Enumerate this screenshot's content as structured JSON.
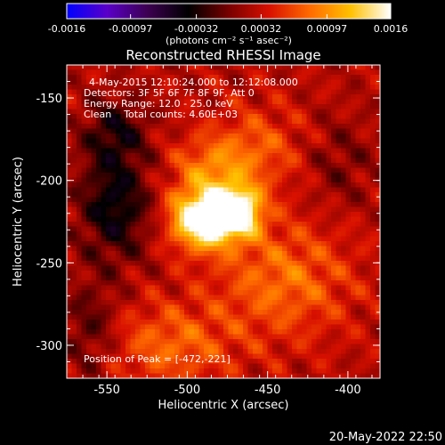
{
  "chart_data": {
    "type": "heatmap",
    "title": "Reconstructed RHESSI Image",
    "xlabel": "Heliocentric X (arcsec)",
    "ylabel": "Heliocentric Y (arcsec)",
    "xlim": [
      -575,
      -380
    ],
    "ylim": [
      -320,
      -130
    ],
    "x_ticks": [
      "-550",
      "-500",
      "-450",
      "-400"
    ],
    "x_tick_values": [
      -550,
      -500,
      -450,
      -400
    ],
    "y_ticks": [
      "-150",
      "-200",
      "-250",
      "-300"
    ],
    "y_tick_values": [
      -150,
      -200,
      -250,
      -300
    ],
    "colorbar": {
      "range": [
        -0.0016,
        0.0016
      ],
      "ticks": [
        "-0.0016",
        "-0.00097",
        "-0.00032",
        "0.00032",
        "0.00097",
        "0.0016"
      ],
      "tick_values": [
        -0.0016,
        -0.00097,
        -0.00032,
        0.00032,
        0.00097,
        0.0016
      ],
      "unit_label": "(photons cm⁻² s⁻¹ asec⁻²)",
      "colors": [
        "#0000ff",
        "#5a00c8",
        "#3c0050",
        "#000000",
        "#780000",
        "#d81000",
        "#ff6a00",
        "#ffc000",
        "#ffffff"
      ]
    },
    "annotations": {
      "time_range": "4-May-2015 12:10:24.000 to 12:12:08.000",
      "detectors": "Detectors: 3F 5F 6F 7F 8F 9F, Att 0",
      "energy_range": "Energy Range: 12.0 - 25.0 keV",
      "method": "Clean    Total counts: 4.60E+03",
      "peak_position": "Position of Peak = [-472,-221]"
    },
    "peak": {
      "x": -472,
      "y": -221
    },
    "sources": [
      {
        "x": -490,
        "y": -224,
        "amp": 0.0016,
        "sx": 14,
        "sy": 12
      },
      {
        "x": -468,
        "y": -219,
        "amp": 0.0014,
        "sx": 10,
        "sy": 10
      },
      {
        "x": -485,
        "y": -195,
        "amp": 0.0006,
        "sx": 18,
        "sy": 15
      },
      {
        "x": -440,
        "y": -260,
        "amp": 0.00055,
        "sx": 30,
        "sy": 25
      },
      {
        "x": -510,
        "y": -300,
        "amp": 0.0005,
        "sx": 28,
        "sy": 18
      },
      {
        "x": -455,
        "y": -180,
        "amp": 0.0004,
        "sx": 20,
        "sy": 18
      },
      {
        "x": -545,
        "y": -215,
        "amp": -0.0007,
        "sx": 16,
        "sy": 24
      },
      {
        "x": -545,
        "y": -170,
        "amp": -0.0005,
        "sx": 14,
        "sy": 14
      },
      {
        "x": -560,
        "y": -290,
        "amp": -0.0004,
        "sx": 12,
        "sy": 20
      },
      {
        "x": -405,
        "y": -190,
        "amp": -0.00025,
        "sx": 15,
        "sy": 20
      }
    ]
  },
  "footer": {
    "timestamp": "20-May-2022 22:50"
  }
}
